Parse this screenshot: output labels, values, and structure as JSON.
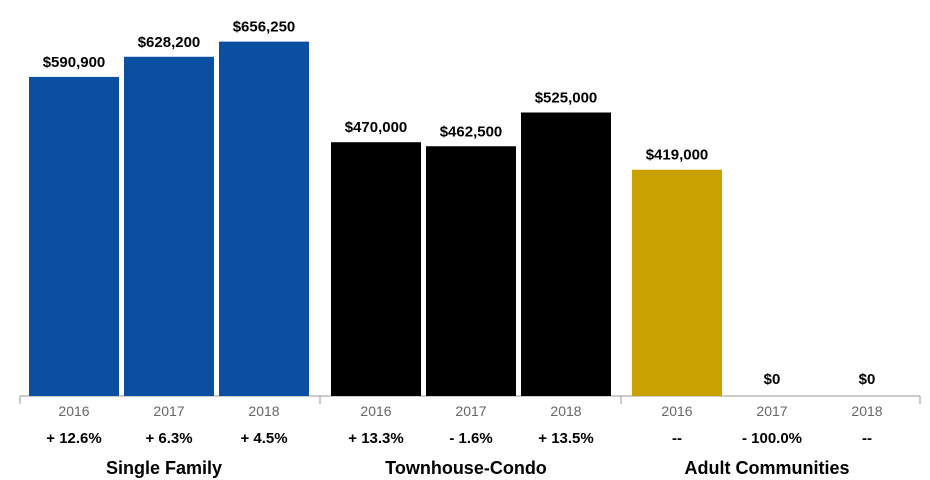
{
  "chart_data": {
    "type": "bar",
    "ylim": [
      0,
      700000
    ],
    "grid": false,
    "groups": [
      {
        "name": "Single Family",
        "color": "#0b4fa3",
        "bars": [
          {
            "year": "2016",
            "value": 590900,
            "label": "$590,900",
            "change": "+ 12.6%"
          },
          {
            "year": "2017",
            "value": 628200,
            "label": "$628,200",
            "change": "+ 6.3%"
          },
          {
            "year": "2018",
            "value": 656250,
            "label": "$656,250",
            "change": "+ 4.5%"
          }
        ]
      },
      {
        "name": "Townhouse-Condo",
        "color": "#000000",
        "bars": [
          {
            "year": "2016",
            "value": 470000,
            "label": "$470,000",
            "change": "+ 13.3%"
          },
          {
            "year": "2017",
            "value": 462500,
            "label": "$462,500",
            "change": "- 1.6%"
          },
          {
            "year": "2018",
            "value": 525000,
            "label": "$525,000",
            "change": "+ 13.5%"
          }
        ]
      },
      {
        "name": "Adult Communities",
        "color": "#c9a100",
        "bars": [
          {
            "year": "2016",
            "value": 419000,
            "label": "$419,000",
            "change": "--"
          },
          {
            "year": "2017",
            "value": 0,
            "label": "$0",
            "change": "- 100.0%"
          },
          {
            "year": "2018",
            "value": 0,
            "label": "$0",
            "change": "--"
          }
        ]
      }
    ]
  }
}
